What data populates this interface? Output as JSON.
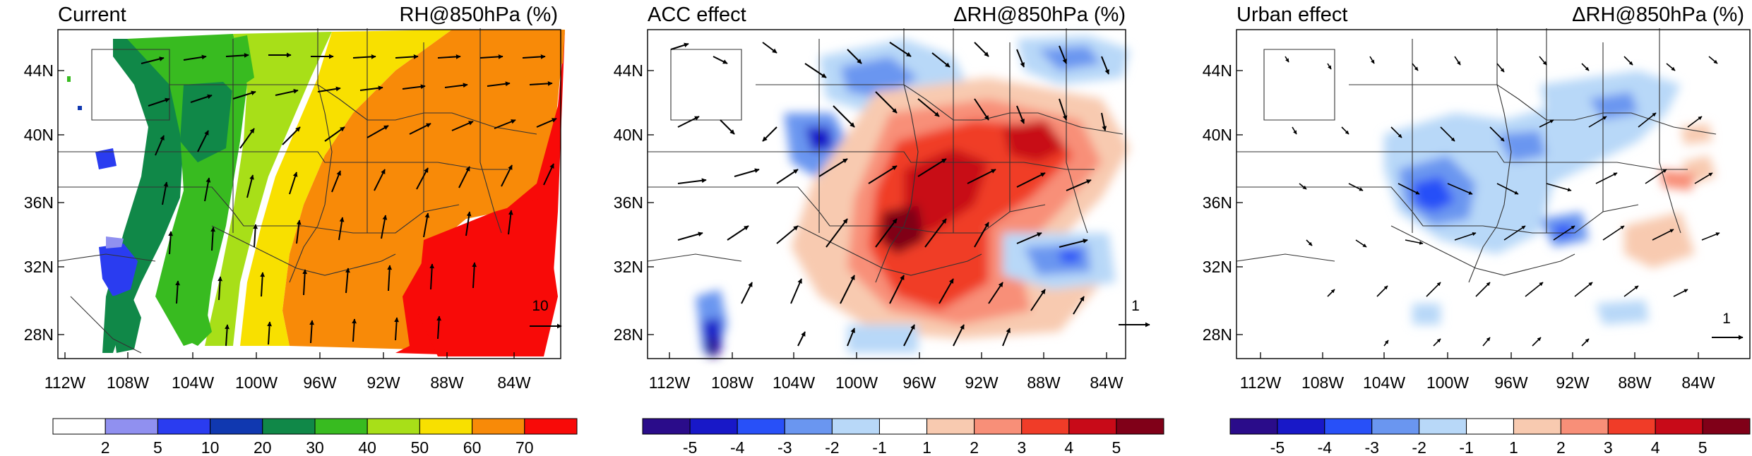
{
  "chart_data": [
    {
      "type": "heatmap",
      "title_left": "Current",
      "title_right": "RH@850hPa (%)",
      "x_ticks": [
        "112W",
        "108W",
        "104W",
        "100W",
        "96W",
        "92W",
        "88W",
        "84W"
      ],
      "y_ticks": [
        "44N",
        "40N",
        "36N",
        "32N",
        "28N"
      ],
      "colorbar_ticks": [
        "2",
        "5",
        "10",
        "20",
        "30",
        "40",
        "50",
        "60",
        "70"
      ],
      "colorbar_colors": [
        "#ffffff",
        "#9090f0",
        "#2a3cf0",
        "#1038b0",
        "#108848",
        "#38bb20",
        "#a8df18",
        "#f8e000",
        "#f88a08",
        "#f80a08"
      ],
      "reference_vector": "10"
    },
    {
      "type": "heatmap",
      "title_left": "ACC effect",
      "title_right": "ΔRH@850hPa (%)",
      "x_ticks": [
        "112W",
        "108W",
        "104W",
        "100W",
        "96W",
        "92W",
        "88W",
        "84W"
      ],
      "y_ticks": [
        "44N",
        "40N",
        "36N",
        "32N",
        "28N"
      ],
      "colorbar_ticks": [
        "-5",
        "-4",
        "-3",
        "-2",
        "-1",
        "1",
        "2",
        "3",
        "4",
        "5"
      ],
      "colorbar_colors": [
        "#2a0c8a",
        "#1818c8",
        "#2850f8",
        "#6a96f0",
        "#b8d8f8",
        "#ffffff",
        "#f8cab0",
        "#f88f78",
        "#f03c28",
        "#c80a18",
        "#800018"
      ],
      "reference_vector": "1"
    },
    {
      "type": "heatmap",
      "title_left": "Urban effect",
      "title_right": "ΔRH@850hPa (%)",
      "x_ticks": [
        "112W",
        "108W",
        "104W",
        "100W",
        "96W",
        "92W",
        "88W",
        "84W"
      ],
      "y_ticks": [
        "44N",
        "40N",
        "36N",
        "32N",
        "28N"
      ],
      "colorbar_ticks": [
        "-5",
        "-4",
        "-3",
        "-2",
        "-1",
        "1",
        "2",
        "3",
        "4",
        "5"
      ],
      "colorbar_colors": [
        "#2a0c8a",
        "#1818c8",
        "#2850f8",
        "#6a96f0",
        "#b8d8f8",
        "#ffffff",
        "#f8cab0",
        "#f88f78",
        "#f03c28",
        "#c80a18",
        "#800018"
      ],
      "reference_vector": "1"
    }
  ]
}
